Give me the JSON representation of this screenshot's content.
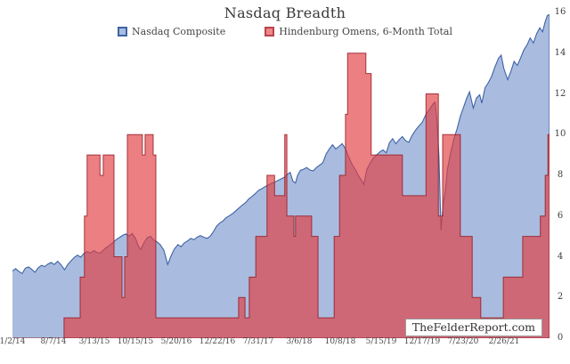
{
  "header": {
    "title": "Nasdaq Breadth"
  },
  "legend": [
    {
      "label": "Nasdaq Composite",
      "swatch_fill": "#a9bcdf",
      "swatch_border": "#3f63a5"
    },
    {
      "label": "Hindenburg Omens, 6-Month Total",
      "swatch_fill": "#ee8888",
      "swatch_border": "#b8434e"
    }
  ],
  "watermark": "TheFelderReport.com",
  "colors": {
    "background": "#ffffff",
    "nasdaq_fill": "#a9bcdf",
    "nasdaq_line": "#3f63a5",
    "omens_fill": "rgba(225,60,64,0.66)",
    "omens_line": "rgba(150,28,38,0.85)",
    "text": "#3a3a3a"
  },
  "chart_data": {
    "type": "area",
    "title": "Nasdaq Breadth",
    "grid": false,
    "legend_position": "top-center",
    "x_unit": "percent_of_plot_width",
    "y_axis": {
      "side": "right",
      "min": 0,
      "max": 16,
      "ticks": [
        16,
        14,
        12,
        10,
        8,
        6,
        4,
        2,
        0
      ]
    },
    "x_axis": {
      "ticks": [
        "1/2/14",
        "8/7/14",
        "3/13/15",
        "10/15/15",
        "5/20/16",
        "12/22/16",
        "7/31/17",
        "3/6/18",
        "10/8/18",
        "5/15/19",
        "12/17/19",
        "7/23/20",
        "2/26/21"
      ]
    },
    "series": [
      {
        "name": "Nasdaq Composite",
        "render": "area-line",
        "fill": "#a9bcdf",
        "line": "#3f63a5",
        "points": [
          [
            0,
            3.3
          ],
          [
            0.6,
            3.42
          ],
          [
            1.2,
            3.28
          ],
          [
            1.8,
            3.18
          ],
          [
            2.4,
            3.44
          ],
          [
            3,
            3.5
          ],
          [
            3.6,
            3.38
          ],
          [
            4.2,
            3.24
          ],
          [
            4.8,
            3.46
          ],
          [
            5.4,
            3.58
          ],
          [
            6,
            3.52
          ],
          [
            6.6,
            3.64
          ],
          [
            7.2,
            3.72
          ],
          [
            7.8,
            3.62
          ],
          [
            8.4,
            3.78
          ],
          [
            9,
            3.62
          ],
          [
            9.7,
            3.36
          ],
          [
            10.3,
            3.62
          ],
          [
            10.9,
            3.8
          ],
          [
            11.5,
            3.96
          ],
          [
            12.1,
            4.08
          ],
          [
            12.7,
            3.98
          ],
          [
            13.3,
            4.16
          ],
          [
            13.9,
            4.26
          ],
          [
            14.5,
            4.18
          ],
          [
            15.1,
            4.3
          ],
          [
            15.7,
            4.22
          ],
          [
            16.3,
            4.18
          ],
          [
            16.9,
            4.32
          ],
          [
            17.5,
            4.46
          ],
          [
            18.1,
            4.56
          ],
          [
            18.7,
            4.7
          ],
          [
            19.3,
            4.84
          ],
          [
            19.9,
            4.94
          ],
          [
            20.5,
            5.05
          ],
          [
            21.1,
            5.12
          ],
          [
            21.7,
            5.02
          ],
          [
            22.3,
            5.14
          ],
          [
            22.9,
            4.9
          ],
          [
            23.5,
            4.5
          ],
          [
            23.9,
            4.36
          ],
          [
            24.5,
            4.7
          ],
          [
            25.1,
            4.94
          ],
          [
            25.7,
            5.0
          ],
          [
            26.3,
            4.82
          ],
          [
            26.9,
            4.74
          ],
          [
            27.5,
            4.6
          ],
          [
            28.2,
            4.32
          ],
          [
            28.9,
            3.62
          ],
          [
            29.5,
            4.02
          ],
          [
            30.1,
            4.36
          ],
          [
            30.8,
            4.6
          ],
          [
            31.4,
            4.5
          ],
          [
            32,
            4.68
          ],
          [
            32.6,
            4.78
          ],
          [
            33.2,
            4.9
          ],
          [
            33.8,
            4.84
          ],
          [
            34.4,
            4.96
          ],
          [
            35,
            5.04
          ],
          [
            35.6,
            4.96
          ],
          [
            36.2,
            4.9
          ],
          [
            36.8,
            5.0
          ],
          [
            37.4,
            5.22
          ],
          [
            38,
            5.5
          ],
          [
            38.6,
            5.66
          ],
          [
            39.2,
            5.76
          ],
          [
            39.8,
            5.92
          ],
          [
            40.4,
            6.02
          ],
          [
            41,
            6.12
          ],
          [
            41.6,
            6.26
          ],
          [
            42.2,
            6.4
          ],
          [
            42.8,
            6.54
          ],
          [
            43.4,
            6.66
          ],
          [
            44,
            6.84
          ],
          [
            44.6,
            6.96
          ],
          [
            45.2,
            7.1
          ],
          [
            45.8,
            7.26
          ],
          [
            46.4,
            7.34
          ],
          [
            47,
            7.44
          ],
          [
            47.6,
            7.52
          ],
          [
            48.2,
            7.6
          ],
          [
            48.8,
            7.66
          ],
          [
            49.4,
            7.74
          ],
          [
            50,
            7.82
          ],
          [
            50.6,
            7.9
          ],
          [
            51.2,
            8.05
          ],
          [
            51.7,
            8.15
          ],
          [
            52.2,
            7.72
          ],
          [
            52.7,
            7.62
          ],
          [
            53.1,
            8.0
          ],
          [
            53.6,
            8.24
          ],
          [
            54.2,
            8.3
          ],
          [
            54.8,
            8.38
          ],
          [
            55.4,
            8.26
          ],
          [
            56,
            8.22
          ],
          [
            56.6,
            8.38
          ],
          [
            57.2,
            8.5
          ],
          [
            57.8,
            8.62
          ],
          [
            58.4,
            9.05
          ],
          [
            59,
            9.3
          ],
          [
            59.6,
            9.5
          ],
          [
            60.2,
            9.3
          ],
          [
            60.8,
            9.42
          ],
          [
            61.4,
            9.55
          ],
          [
            62,
            9.3
          ],
          [
            62.6,
            8.9
          ],
          [
            63.2,
            8.55
          ],
          [
            63.8,
            8.3
          ],
          [
            64.4,
            8.0
          ],
          [
            65,
            7.75
          ],
          [
            65.4,
            7.55
          ],
          [
            66,
            8.3
          ],
          [
            66.6,
            8.6
          ],
          [
            67.2,
            8.85
          ],
          [
            67.8,
            9.0
          ],
          [
            68.4,
            9.15
          ],
          [
            69,
            9.25
          ],
          [
            69.6,
            9.1
          ],
          [
            70.2,
            9.6
          ],
          [
            70.8,
            9.8
          ],
          [
            71.4,
            9.55
          ],
          [
            72,
            9.75
          ],
          [
            72.6,
            9.9
          ],
          [
            73.2,
            9.7
          ],
          [
            73.8,
            9.62
          ],
          [
            74.4,
            9.95
          ],
          [
            75,
            10.2
          ],
          [
            75.6,
            10.4
          ],
          [
            76.3,
            10.6
          ],
          [
            77,
            11.0
          ],
          [
            77.7,
            11.25
          ],
          [
            78.3,
            11.5
          ],
          [
            78.7,
            11.6
          ],
          [
            79,
            10.8
          ],
          [
            79.4,
            9.0
          ],
          [
            79.8,
            5.3
          ],
          [
            80.2,
            6.6
          ],
          [
            80.6,
            7.2
          ],
          [
            81,
            8.3
          ],
          [
            81.6,
            9.1
          ],
          [
            82.2,
            9.8
          ],
          [
            82.8,
            10.3
          ],
          [
            83.4,
            10.9
          ],
          [
            84,
            11.35
          ],
          [
            84.6,
            11.8
          ],
          [
            85.1,
            12.1
          ],
          [
            85.8,
            11.3
          ],
          [
            86.4,
            11.8
          ],
          [
            87,
            11.95
          ],
          [
            87.4,
            11.55
          ],
          [
            88,
            12.3
          ],
          [
            88.6,
            12.55
          ],
          [
            89.2,
            12.85
          ],
          [
            89.8,
            13.3
          ],
          [
            90.5,
            13.75
          ],
          [
            91,
            13.9
          ],
          [
            91.5,
            13.25
          ],
          [
            92.2,
            12.7
          ],
          [
            92.8,
            13.1
          ],
          [
            93.4,
            13.6
          ],
          [
            94,
            13.4
          ],
          [
            94.6,
            13.75
          ],
          [
            95.2,
            14.15
          ],
          [
            95.8,
            14.4
          ],
          [
            96.4,
            14.75
          ],
          [
            97,
            14.5
          ],
          [
            97.6,
            14.95
          ],
          [
            98.2,
            15.25
          ],
          [
            98.7,
            15.05
          ],
          [
            99.2,
            15.55
          ],
          [
            99.6,
            15.85
          ],
          [
            100,
            15.9
          ]
        ]
      },
      {
        "name": "Hindenburg Omens, 6-Month Total",
        "render": "step-area",
        "fill": "rgba(225,60,64,0.66)",
        "line": "rgba(150,28,38,0.85)",
        "steps": [
          [
            0,
            0
          ],
          [
            9.6,
            1
          ],
          [
            12.6,
            3
          ],
          [
            13.4,
            6
          ],
          [
            13.9,
            9
          ],
          [
            16.3,
            8
          ],
          [
            16.9,
            9
          ],
          [
            18.9,
            4
          ],
          [
            20.4,
            2
          ],
          [
            20.9,
            4
          ],
          [
            21.4,
            10
          ],
          [
            24.2,
            9
          ],
          [
            24.7,
            10
          ],
          [
            26.2,
            9
          ],
          [
            26.7,
            1
          ],
          [
            42.1,
            2
          ],
          [
            43.3,
            1
          ],
          [
            44.1,
            3
          ],
          [
            45.3,
            5
          ],
          [
            47.4,
            8
          ],
          [
            48.8,
            7
          ],
          [
            50.7,
            10
          ],
          [
            51.1,
            6
          ],
          [
            52.4,
            5
          ],
          [
            52.7,
            6
          ],
          [
            55.7,
            5
          ],
          [
            56.9,
            1
          ],
          [
            59.9,
            5
          ],
          [
            60.9,
            8
          ],
          [
            62,
            11
          ],
          [
            62.4,
            14
          ],
          [
            65.8,
            13
          ],
          [
            66.8,
            9
          ],
          [
            72.6,
            7
          ],
          [
            77,
            12
          ],
          [
            79.3,
            6
          ],
          [
            80.1,
            10
          ],
          [
            83.4,
            5
          ],
          [
            85.6,
            2
          ],
          [
            87.2,
            1
          ],
          [
            91.4,
            3
          ],
          [
            95,
            5
          ],
          [
            98.3,
            6
          ],
          [
            99.2,
            8
          ],
          [
            99.7,
            10
          ]
        ]
      }
    ]
  }
}
